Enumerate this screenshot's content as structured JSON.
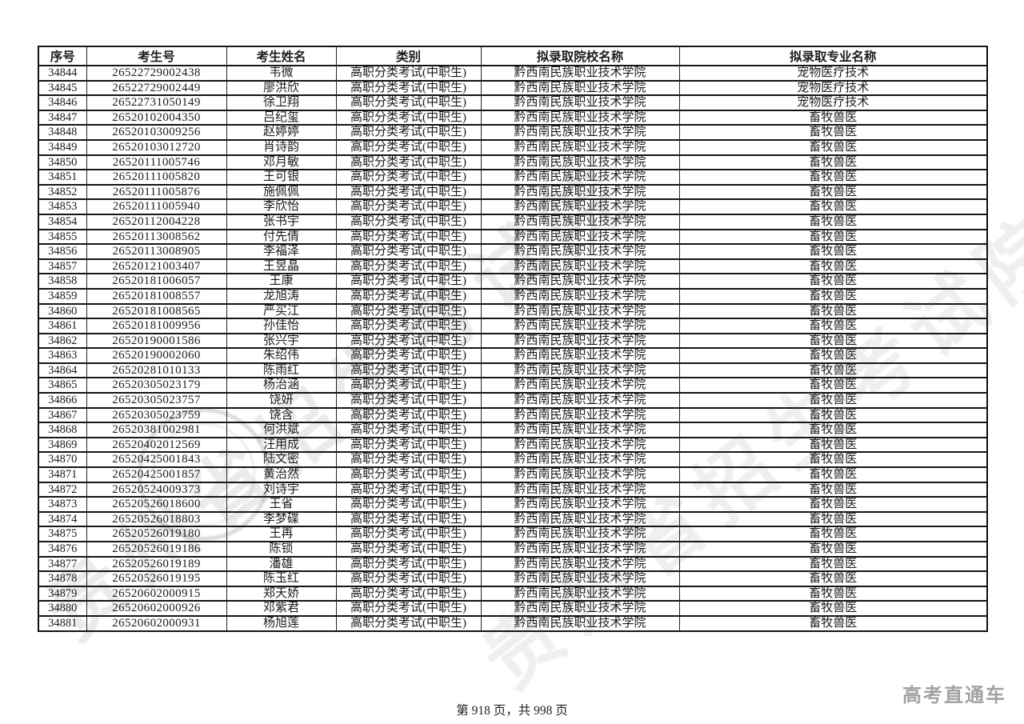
{
  "table": {
    "columns": [
      "序号",
      "考生号",
      "考生姓名",
      "类别",
      "拟录取院校名称",
      "拟录取专业名称"
    ],
    "rows": [
      [
        "34844",
        "26522729002438",
        "韦微",
        "高职分类考试(中职生)",
        "黔西南民族职业技术学院",
        "宠物医疗技术"
      ],
      [
        "34845",
        "26522729002449",
        "廖洪欣",
        "高职分类考试(中职生)",
        "黔西南民族职业技术学院",
        "宠物医疗技术"
      ],
      [
        "34846",
        "26522731050149",
        "徐卫翔",
        "高职分类考试(中职生)",
        "黔西南民族职业技术学院",
        "宠物医疗技术"
      ],
      [
        "34847",
        "26520102004350",
        "吕纪玺",
        "高职分类考试(中职生)",
        "黔西南民族职业技术学院",
        "畜牧兽医"
      ],
      [
        "34848",
        "26520103009256",
        "赵婷婷",
        "高职分类考试(中职生)",
        "黔西南民族职业技术学院",
        "畜牧兽医"
      ],
      [
        "34849",
        "26520103012720",
        "肖诗韵",
        "高职分类考试(中职生)",
        "黔西南民族职业技术学院",
        "畜牧兽医"
      ],
      [
        "34850",
        "26520111005746",
        "邓月敏",
        "高职分类考试(中职生)",
        "黔西南民族职业技术学院",
        "畜牧兽医"
      ],
      [
        "34851",
        "26520111005820",
        "王可银",
        "高职分类考试(中职生)",
        "黔西南民族职业技术学院",
        "畜牧兽医"
      ],
      [
        "34852",
        "26520111005876",
        "施佩佩",
        "高职分类考试(中职生)",
        "黔西南民族职业技术学院",
        "畜牧兽医"
      ],
      [
        "34853",
        "26520111005940",
        "李欣怡",
        "高职分类考试(中职生)",
        "黔西南民族职业技术学院",
        "畜牧兽医"
      ],
      [
        "34854",
        "26520112004228",
        "张书宇",
        "高职分类考试(中职生)",
        "黔西南民族职业技术学院",
        "畜牧兽医"
      ],
      [
        "34855",
        "26520113008562",
        "付先倩",
        "高职分类考试(中职生)",
        "黔西南民族职业技术学院",
        "畜牧兽医"
      ],
      [
        "34856",
        "26520113008905",
        "李福泽",
        "高职分类考试(中职生)",
        "黔西南民族职业技术学院",
        "畜牧兽医"
      ],
      [
        "34857",
        "26520121003407",
        "王昱晶",
        "高职分类考试(中职生)",
        "黔西南民族职业技术学院",
        "畜牧兽医"
      ],
      [
        "34858",
        "26520181006057",
        "王康",
        "高职分类考试(中职生)",
        "黔西南民族职业技术学院",
        "畜牧兽医"
      ],
      [
        "34859",
        "26520181008557",
        "龙旭涛",
        "高职分类考试(中职生)",
        "黔西南民族职业技术学院",
        "畜牧兽医"
      ],
      [
        "34860",
        "26520181008565",
        "严买江",
        "高职分类考试(中职生)",
        "黔西南民族职业技术学院",
        "畜牧兽医"
      ],
      [
        "34861",
        "26520181009956",
        "孙佳怡",
        "高职分类考试(中职生)",
        "黔西南民族职业技术学院",
        "畜牧兽医"
      ],
      [
        "34862",
        "26520190001586",
        "张兴宇",
        "高职分类考试(中职生)",
        "黔西南民族职业技术学院",
        "畜牧兽医"
      ],
      [
        "34863",
        "26520190002060",
        "朱绍伟",
        "高职分类考试(中职生)",
        "黔西南民族职业技术学院",
        "畜牧兽医"
      ],
      [
        "34864",
        "26520281010133",
        "陈雨红",
        "高职分类考试(中职生)",
        "黔西南民族职业技术学院",
        "畜牧兽医"
      ],
      [
        "34865",
        "26520305023179",
        "杨治涵",
        "高职分类考试(中职生)",
        "黔西南民族职业技术学院",
        "畜牧兽医"
      ],
      [
        "34866",
        "26520305023757",
        "饶妍",
        "高职分类考试(中职生)",
        "黔西南民族职业技术学院",
        "畜牧兽医"
      ],
      [
        "34867",
        "26520305023759",
        "饶含",
        "高职分类考试(中职生)",
        "黔西南民族职业技术学院",
        "畜牧兽医"
      ],
      [
        "34868",
        "26520381002981",
        "何洪斌",
        "高职分类考试(中职生)",
        "黔西南民族职业技术学院",
        "畜牧兽医"
      ],
      [
        "34869",
        "26520402012569",
        "汪用成",
        "高职分类考试(中职生)",
        "黔西南民族职业技术学院",
        "畜牧兽医"
      ],
      [
        "34870",
        "26520425001843",
        "陆文密",
        "高职分类考试(中职生)",
        "黔西南民族职业技术学院",
        "畜牧兽医"
      ],
      [
        "34871",
        "26520425001857",
        "黄治然",
        "高职分类考试(中职生)",
        "黔西南民族职业技术学院",
        "畜牧兽医"
      ],
      [
        "34872",
        "26520524009373",
        "刘诗宇",
        "高职分类考试(中职生)",
        "黔西南民族职业技术学院",
        "畜牧兽医"
      ],
      [
        "34873",
        "26520526018600",
        "王省",
        "高职分类考试(中职生)",
        "黔西南民族职业技术学院",
        "畜牧兽医"
      ],
      [
        "34874",
        "26520526018803",
        "李梦碟",
        "高职分类考试(中职生)",
        "黔西南民族职业技术学院",
        "畜牧兽医"
      ],
      [
        "34875",
        "26520526019180",
        "王再",
        "高职分类考试(中职生)",
        "黔西南民族职业技术学院",
        "畜牧兽医"
      ],
      [
        "34876",
        "26520526019186",
        "陈锁",
        "高职分类考试(中职生)",
        "黔西南民族职业技术学院",
        "畜牧兽医"
      ],
      [
        "34877",
        "26520526019189",
        "潘雄",
        "高职分类考试(中职生)",
        "黔西南民族职业技术学院",
        "畜牧兽医"
      ],
      [
        "34878",
        "26520526019195",
        "陈玉红",
        "高职分类考试(中职生)",
        "黔西南民族职业技术学院",
        "畜牧兽医"
      ],
      [
        "34879",
        "26520602000915",
        "郑天娇",
        "高职分类考试(中职生)",
        "黔西南民族职业技术学院",
        "畜牧兽医"
      ],
      [
        "34880",
        "26520602000926",
        "邓紫君",
        "高职分类考试(中职生)",
        "黔西南民族职业技术学院",
        "畜牧兽医"
      ],
      [
        "34881",
        "26520602000931",
        "杨旭莲",
        "高职分类考试(中职生)",
        "黔西南民族职业技术学院",
        "畜牧兽医"
      ]
    ],
    "cell_keys": [
      "no",
      "candidate-id",
      "name",
      "category",
      "college",
      "major"
    ]
  },
  "watermark": {
    "text": "贵州省招生考试院"
  },
  "footer": {
    "page_info": "第 918 页，共 998 页",
    "brand": "高考直通车"
  },
  "colors": {
    "text": "#1c1c1c",
    "border": "#151515",
    "watermark_gray": "#828282",
    "brand_gray": "#a2a2a2"
  }
}
